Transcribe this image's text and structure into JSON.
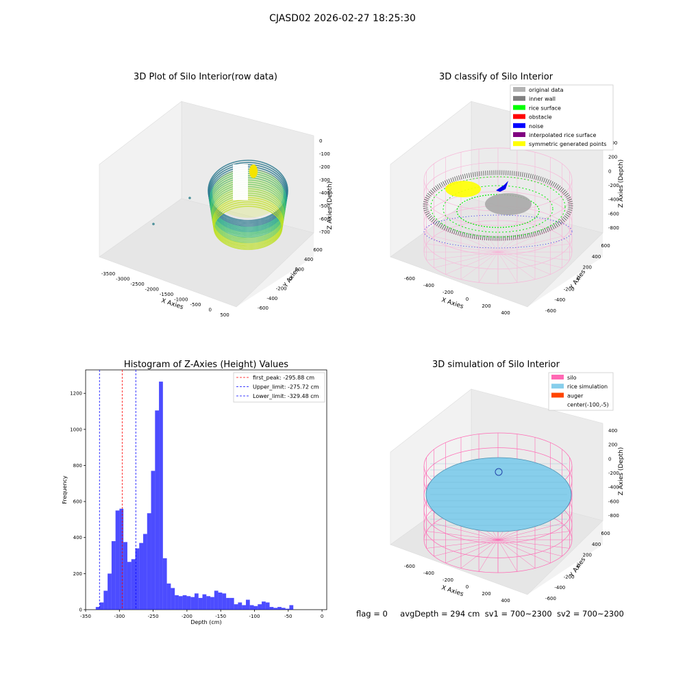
{
  "suptitle": "CJASD02 2026-02-27 18:25:30",
  "panels": {
    "raw": {
      "title": "3D Plot of Silo Interior(row data)",
      "xlabel": "X Axies",
      "ylabel": "Y Axies",
      "zlabel": "Z Axies (Depth)",
      "xticks": [
        "-3500",
        "-3000",
        "-2500",
        "-2000",
        "-1500",
        "-1000",
        "-500",
        "0",
        "500"
      ],
      "yticks": [
        "-600",
        "-400",
        "-200",
        "0",
        "200",
        "400",
        "600"
      ],
      "zticks": [
        "0",
        "-100",
        "-200",
        "-300",
        "-400",
        "-500",
        "-600",
        "-700"
      ]
    },
    "classify": {
      "title": "3D classify of Silo Interior",
      "xlabel": "X Axies",
      "ylabel": "Y Axies",
      "zlabel": "Z Axies (Depth)",
      "xticks": [
        "-600",
        "-400",
        "-200",
        "0",
        "200",
        "400"
      ],
      "yticks": [
        "-600",
        "-400",
        "-200",
        "0",
        "200",
        "400",
        "600"
      ],
      "zticks": [
        "400",
        "200",
        "0",
        "-200",
        "-400",
        "-600",
        "-800"
      ],
      "legend": [
        {
          "label": "original data",
          "color": "#b3b3b3"
        },
        {
          "label": "inner wall",
          "color": "#808080"
        },
        {
          "label": "rice surface",
          "color": "#00ff00"
        },
        {
          "label": "obstacle",
          "color": "#ff0000"
        },
        {
          "label": "noise",
          "color": "#0000ff"
        },
        {
          "label": "interpolated rice surface",
          "color": "#800080"
        },
        {
          "label": "symmetric generated points",
          "color": "#ffff00"
        }
      ]
    },
    "simulation": {
      "title": "3D simulation of Silo Interior",
      "xlabel": "X Axies",
      "ylabel": "Y Axies",
      "zlabel": "Z Axies (Depth)",
      "xticks": [
        "-600",
        "-400",
        "-200",
        "0",
        "200",
        "400"
      ],
      "yticks": [
        "-600",
        "-400",
        "-200",
        "0",
        "200",
        "400",
        "600"
      ],
      "zticks": [
        "400",
        "200",
        "0",
        "-200",
        "-400",
        "-600",
        "-800"
      ],
      "legend": [
        {
          "label": "silo",
          "color": "#ff69b4"
        },
        {
          "label": "rice simulation",
          "color": "#87ceeb"
        },
        {
          "label": "auger",
          "color": "#ff4500"
        },
        {
          "label": "center(-100,-5)",
          "color": "none"
        }
      ]
    }
  },
  "status": {
    "flag": "flag = 0",
    "avg_depth": "avgDepth = 294 cm",
    "sv1": "sv1 = 700~2300",
    "sv2": "sv2 = 700~2300"
  },
  "chart_data": {
    "type": "bar",
    "title": "Histogram of Z-Axies (Height) Values",
    "xlabel": "Depth (cm)",
    "ylabel": "Frequency",
    "xlim": [
      -350,
      7
    ],
    "ylim": [
      0,
      1330
    ],
    "xticks": [
      -350,
      -300,
      -250,
      -200,
      -150,
      -100,
      -50,
      0
    ],
    "yticks": [
      0,
      200,
      400,
      600,
      800,
      1000,
      1200
    ],
    "bar_color": "#0000ff",
    "bin_width": 5.85,
    "bin_start": -335.0,
    "values": [
      15,
      40,
      105,
      200,
      380,
      550,
      560,
      375,
      265,
      280,
      340,
      370,
      420,
      535,
      770,
      1105,
      1265,
      285,
      145,
      120,
      80,
      75,
      80,
      75,
      70,
      90,
      65,
      85,
      75,
      70,
      105,
      95,
      90,
      65,
      65,
      30,
      40,
      25,
      55,
      25,
      20,
      30,
      45,
      40,
      15,
      10,
      15,
      10,
      5,
      25
    ],
    "lines": [
      {
        "label": "first_peak: -295.88 cm",
        "x": -295.88,
        "color": "#ff0000"
      },
      {
        "label": "Upper_limit: -275.72 cm",
        "x": -275.72,
        "color": "#0000ff"
      },
      {
        "label": "Lower_limit: -329.48 cm",
        "x": -329.48,
        "color": "#0000ff"
      }
    ],
    "legend_position": "upper right"
  }
}
